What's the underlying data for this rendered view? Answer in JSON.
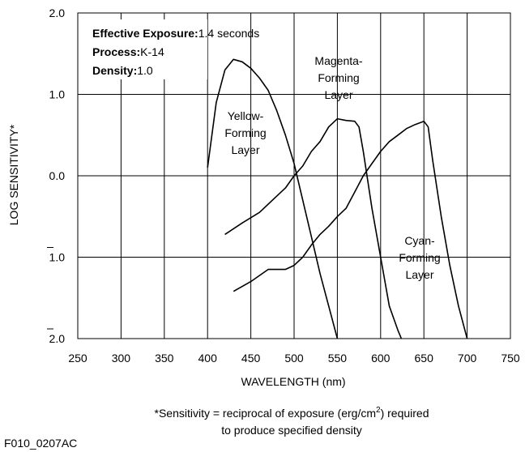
{
  "chart_data": {
    "type": "line",
    "xlabel": "WAVELENGTH (nm)",
    "ylabel": "LOG SENSITIVITY*",
    "xlim": [
      250,
      750
    ],
    "xticks": [
      250,
      300,
      350,
      400,
      450,
      500,
      550,
      600,
      650,
      700,
      750
    ],
    "ylim": [
      -2,
      2
    ],
    "yticks": [
      {
        "value": 2,
        "label": "2.0"
      },
      {
        "value": 1,
        "label": "1.0"
      },
      {
        "value": 0,
        "label": "0.0"
      },
      {
        "value": -1,
        "label": "1.0"
      },
      {
        "value": -2,
        "label": "2.0"
      }
    ],
    "grid": true,
    "info": [
      {
        "key": "Effective Exposure:",
        "value": "1.4 seconds"
      },
      {
        "key": "Process:",
        "value": "K-14"
      },
      {
        "key": "Density:",
        "value": "1.0"
      }
    ],
    "series": [
      {
        "label_lines": [
          "Yellow-",
          "Forming",
          "Layer"
        ],
        "color": "#000000",
        "x": [
          400,
          410,
          420,
          430,
          440,
          450,
          460,
          470,
          480,
          490,
          500,
          510,
          520,
          530,
          540,
          550
        ],
        "values": [
          0.1,
          0.9,
          1.3,
          1.43,
          1.4,
          1.32,
          1.2,
          1.05,
          0.8,
          0.5,
          0.15,
          -0.3,
          -0.75,
          -1.2,
          -1.6,
          -2.0
        ]
      },
      {
        "label_lines": [
          "Magenta-",
          "Forming",
          "Layer"
        ],
        "color": "#000000",
        "x": [
          420,
          440,
          460,
          480,
          490,
          500,
          510,
          520,
          530,
          540,
          550,
          560,
          570,
          575,
          580,
          590,
          600,
          610,
          620,
          624
        ],
        "values": [
          -0.72,
          -0.58,
          -0.45,
          -0.25,
          -0.15,
          0.0,
          0.12,
          0.3,
          0.42,
          0.6,
          0.7,
          0.68,
          0.67,
          0.6,
          0.3,
          -0.4,
          -1.0,
          -1.6,
          -1.9,
          -2.0
        ]
      },
      {
        "label_lines": [
          "Cyan-",
          "Forming",
          "Layer"
        ],
        "color": "#000000",
        "x": [
          430,
          450,
          470,
          480,
          490,
          500,
          510,
          520,
          530,
          540,
          550,
          560,
          570,
          580,
          590,
          600,
          610,
          620,
          630,
          640,
          650,
          655,
          660,
          670,
          680,
          690,
          700
        ],
        "values": [
          -1.42,
          -1.3,
          -1.15,
          -1.15,
          -1.15,
          -1.1,
          -1.0,
          -0.85,
          -0.72,
          -0.62,
          -0.5,
          -0.4,
          -0.2,
          0.0,
          0.15,
          0.3,
          0.42,
          0.5,
          0.58,
          0.63,
          0.67,
          0.6,
          0.2,
          -0.5,
          -1.1,
          -1.6,
          -2.0
        ]
      }
    ],
    "footnote": {
      "before": "*Sensitivity = reciprocal of exposure (erg/cm",
      "sup": "2",
      "after": ") required",
      "line2": "to produce specified density"
    },
    "code": "F010_0207AC"
  }
}
